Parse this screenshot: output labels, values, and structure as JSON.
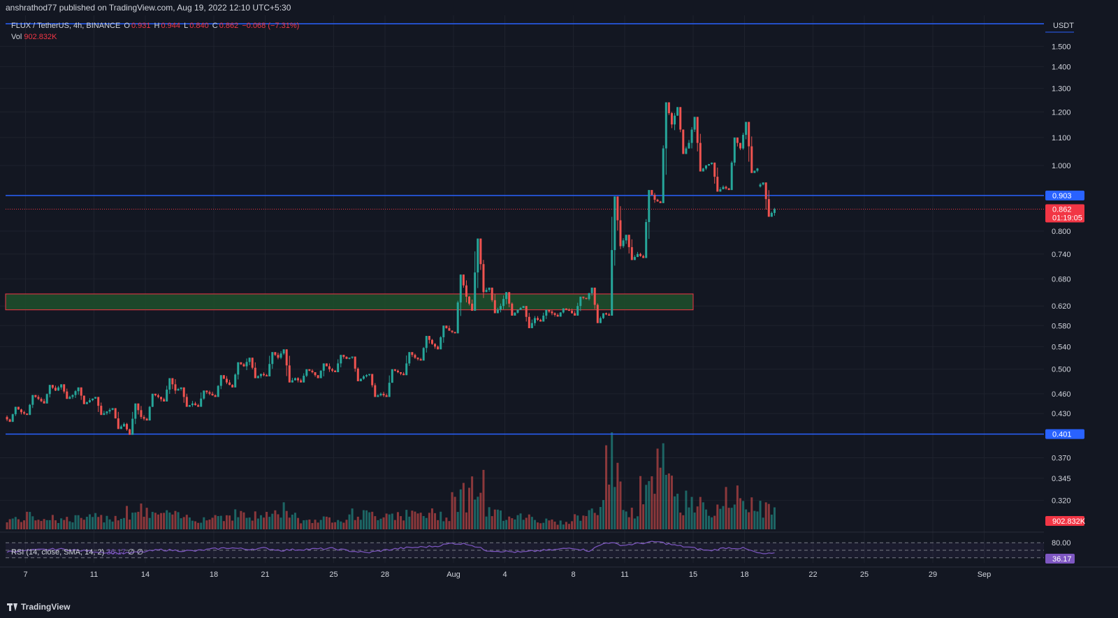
{
  "header": {
    "publish_line": "anshrathod77 published on TradingView.com, Aug 19, 2022 12:10 UTC+5:30"
  },
  "legend": {
    "symbol": "FLUX / TetherUS, 4h, BINANCE",
    "o_label": "O",
    "o_value": "0.931",
    "h_label": "H",
    "h_value": "0.944",
    "l_label": "L",
    "l_value": "0.840",
    "c_label": "C",
    "c_value": "0.862",
    "change": "−0.068 (−7.31%)",
    "vol_label": "Vol",
    "vol_value": "902.832K"
  },
  "rsi_legend": {
    "label": "RSI (14, close, SMA, 14, 2)",
    "value": "36.17",
    "extra": "∅ ∅"
  },
  "footer": {
    "brand": "TradingView"
  },
  "colors": {
    "up": "#26a69a",
    "down": "#ef5350",
    "level_line": "#2962ff",
    "zone_fill": "#1e4d2b",
    "zone_border": "#f23645",
    "rsi_line": "#7e57c2",
    "badge_red": "#f23645"
  },
  "chart_data": {
    "type": "candlestick",
    "symbol": "FLUX / TetherUS",
    "timeframe": "4h",
    "exchange": "BINANCE",
    "currency": "USDT",
    "y_scale": "log",
    "ylim": [
      0.29,
      1.62
    ],
    "y_ticks": [
      "1.500",
      "1.400",
      "1.300",
      "1.200",
      "1.100",
      "1.000",
      "0.800",
      "0.740",
      "0.680",
      "0.620",
      "0.580",
      "0.540",
      "0.500",
      "0.460",
      "0.430",
      "0.370",
      "0.345",
      "0.320"
    ],
    "x_ticks": [
      "7",
      "11",
      "14",
      "18",
      "21",
      "25",
      "28",
      "Aug",
      "4",
      "8",
      "11",
      "15",
      "18",
      "22",
      "25",
      "29",
      "Sep"
    ],
    "date_range": [
      "2022-07-06",
      "2022-08-19"
    ],
    "ohlc_daily": [
      {
        "date": "2022-07-06",
        "open": 0.425,
        "high": 0.44,
        "low": 0.418,
        "close": 0.432
      },
      {
        "date": "2022-07-07",
        "open": 0.432,
        "high": 0.458,
        "low": 0.428,
        "close": 0.452
      },
      {
        "date": "2022-07-08",
        "open": 0.452,
        "high": 0.474,
        "low": 0.445,
        "close": 0.465
      },
      {
        "date": "2022-07-09",
        "open": 0.465,
        "high": 0.475,
        "low": 0.452,
        "close": 0.458
      },
      {
        "date": "2022-07-10",
        "open": 0.458,
        "high": 0.47,
        "low": 0.444,
        "close": 0.45
      },
      {
        "date": "2022-07-11",
        "open": 0.45,
        "high": 0.455,
        "low": 0.428,
        "close": 0.433
      },
      {
        "date": "2022-07-12",
        "open": 0.433,
        "high": 0.438,
        "low": 0.408,
        "close": 0.415
      },
      {
        "date": "2022-07-13",
        "open": 0.415,
        "high": 0.445,
        "low": 0.4,
        "close": 0.425
      },
      {
        "date": "2022-07-14",
        "open": 0.425,
        "high": 0.46,
        "low": 0.42,
        "close": 0.455
      },
      {
        "date": "2022-07-15",
        "open": 0.455,
        "high": 0.485,
        "low": 0.448,
        "close": 0.465
      },
      {
        "date": "2022-07-16",
        "open": 0.465,
        "high": 0.47,
        "low": 0.44,
        "close": 0.445
      },
      {
        "date": "2022-07-17",
        "open": 0.445,
        "high": 0.465,
        "low": 0.44,
        "close": 0.46
      },
      {
        "date": "2022-07-18",
        "open": 0.46,
        "high": 0.49,
        "low": 0.455,
        "close": 0.478
      },
      {
        "date": "2022-07-19",
        "open": 0.478,
        "high": 0.512,
        "low": 0.47,
        "close": 0.505
      },
      {
        "date": "2022-07-20",
        "open": 0.505,
        "high": 0.52,
        "low": 0.485,
        "close": 0.492
      },
      {
        "date": "2022-07-21",
        "open": 0.492,
        "high": 0.53,
        "low": 0.488,
        "close": 0.52
      },
      {
        "date": "2022-07-22",
        "open": 0.52,
        "high": 0.535,
        "low": 0.478,
        "close": 0.485
      },
      {
        "date": "2022-07-23",
        "open": 0.485,
        "high": 0.5,
        "low": 0.478,
        "close": 0.495
      },
      {
        "date": "2022-07-24",
        "open": 0.495,
        "high": 0.51,
        "low": 0.485,
        "close": 0.5
      },
      {
        "date": "2022-07-25",
        "open": 0.5,
        "high": 0.525,
        "low": 0.495,
        "close": 0.518
      },
      {
        "date": "2022-07-26",
        "open": 0.518,
        "high": 0.522,
        "low": 0.48,
        "close": 0.488
      },
      {
        "date": "2022-07-27",
        "open": 0.488,
        "high": 0.492,
        "low": 0.455,
        "close": 0.46
      },
      {
        "date": "2022-07-28",
        "open": 0.46,
        "high": 0.5,
        "low": 0.455,
        "close": 0.495
      },
      {
        "date": "2022-07-29",
        "open": 0.495,
        "high": 0.53,
        "low": 0.49,
        "close": 0.52
      },
      {
        "date": "2022-07-30",
        "open": 0.52,
        "high": 0.56,
        "low": 0.515,
        "close": 0.545
      },
      {
        "date": "2022-07-31",
        "open": 0.545,
        "high": 0.58,
        "low": 0.535,
        "close": 0.57
      },
      {
        "date": "2022-08-01",
        "open": 0.57,
        "high": 0.69,
        "low": 0.565,
        "close": 0.64
      },
      {
        "date": "2022-08-02",
        "open": 0.64,
        "high": 0.78,
        "low": 0.61,
        "close": 0.65
      },
      {
        "date": "2022-08-03",
        "open": 0.65,
        "high": 0.66,
        "low": 0.605,
        "close": 0.62
      },
      {
        "date": "2022-08-04",
        "open": 0.62,
        "high": 0.65,
        "low": 0.6,
        "close": 0.612
      },
      {
        "date": "2022-08-05",
        "open": 0.612,
        "high": 0.62,
        "low": 0.575,
        "close": 0.595
      },
      {
        "date": "2022-08-06",
        "open": 0.595,
        "high": 0.612,
        "low": 0.588,
        "close": 0.605
      },
      {
        "date": "2022-08-07",
        "open": 0.605,
        "high": 0.615,
        "low": 0.598,
        "close": 0.61
      },
      {
        "date": "2022-08-08",
        "open": 0.61,
        "high": 0.64,
        "low": 0.6,
        "close": 0.635
      },
      {
        "date": "2022-08-09",
        "open": 0.635,
        "high": 0.66,
        "low": 0.585,
        "close": 0.605
      },
      {
        "date": "2022-08-10",
        "open": 0.605,
        "high": 0.9,
        "low": 0.6,
        "close": 0.76
      },
      {
        "date": "2022-08-11",
        "open": 0.76,
        "high": 0.79,
        "low": 0.725,
        "close": 0.74
      },
      {
        "date": "2022-08-12",
        "open": 0.74,
        "high": 0.92,
        "low": 0.73,
        "close": 0.89
      },
      {
        "date": "2022-08-13",
        "open": 0.89,
        "high": 1.24,
        "low": 0.88,
        "close": 1.15
      },
      {
        "date": "2022-08-14",
        "open": 1.15,
        "high": 1.22,
        "low": 1.04,
        "close": 1.08
      },
      {
        "date": "2022-08-15",
        "open": 1.08,
        "high": 1.18,
        "low": 0.98,
        "close": 1.0
      },
      {
        "date": "2022-08-16",
        "open": 1.0,
        "high": 1.01,
        "low": 0.915,
        "close": 0.93
      },
      {
        "date": "2022-08-17",
        "open": 0.93,
        "high": 1.1,
        "low": 0.92,
        "close": 1.06
      },
      {
        "date": "2022-08-18",
        "open": 1.06,
        "high": 1.16,
        "low": 0.975,
        "close": 0.99
      },
      {
        "date": "2022-08-19",
        "open": 0.931,
        "high": 0.944,
        "low": 0.84,
        "close": 0.862
      }
    ],
    "horizontal_levels": [
      {
        "label": "0.903",
        "value": 0.903
      },
      {
        "label": "0.401",
        "value": 0.401
      },
      {
        "value": 1.62
      }
    ],
    "zone": {
      "low": 0.612,
      "high": 0.646,
      "from": "2022-07-06",
      "to": "2022-08-15"
    },
    "last_price": {
      "label": "0.862",
      "countdown": "01:19:05"
    },
    "volume_badge": "902.832K",
    "rsi": {
      "period": 14,
      "upper": 80,
      "upper_label": "80.00",
      "last_label": "36.17",
      "values": [
        45,
        48,
        52,
        55,
        50,
        46,
        40,
        38,
        44,
        52,
        49,
        47,
        55,
        60,
        54,
        58,
        50,
        53,
        55,
        57,
        48,
        40,
        50,
        58,
        62,
        66,
        78,
        74,
        50,
        46,
        42,
        48,
        52,
        60,
        48,
        82,
        70,
        78,
        84,
        70,
        60,
        48,
        60,
        58,
        36
      ]
    }
  }
}
